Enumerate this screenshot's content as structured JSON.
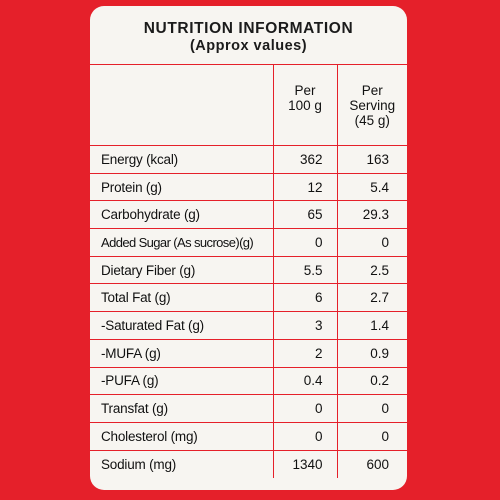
{
  "label": {
    "title": "NUTRITION INFORMATION",
    "subtitle": "(Approx values)",
    "columns": {
      "per_100g_line1": "Per",
      "per_100g_line2": "100 g",
      "per_serving_line1": "Per",
      "per_serving_line2": "Serving",
      "per_serving_line3": "(45 g)"
    },
    "rows": [
      {
        "name": "Energy (kcal)",
        "per_100g": "362",
        "per_serving": "163"
      },
      {
        "name": "Protein (g)",
        "per_100g": "12",
        "per_serving": "5.4"
      },
      {
        "name": "Carbohydrate (g)",
        "per_100g": "65",
        "per_serving": "29.3"
      },
      {
        "name": "Added Sugar (As sucrose)(g)",
        "per_100g": "0",
        "per_serving": "0"
      },
      {
        "name": "Dietary Fiber (g)",
        "per_100g": "5.5",
        "per_serving": "2.5"
      },
      {
        "name": "Total Fat (g)",
        "per_100g": "6",
        "per_serving": "2.7"
      },
      {
        "name": "-Saturated Fat (g)",
        "per_100g": "3",
        "per_serving": "1.4"
      },
      {
        "name": "-MUFA (g)",
        "per_100g": "2",
        "per_serving": "0.9"
      },
      {
        "name": "-PUFA (g)",
        "per_100g": "0.4",
        "per_serving": "0.2"
      },
      {
        "name": "Transfat (g)",
        "per_100g": "0",
        "per_serving": "0"
      },
      {
        "name": "Cholesterol (mg)",
        "per_100g": "0",
        "per_serving": "0"
      },
      {
        "name": "Sodium (mg)",
        "per_100g": "1340",
        "per_serving": "600"
      }
    ]
  },
  "colors": {
    "package_red": "#e5202a",
    "panel_background": "#f7f5f1",
    "text": "#111111"
  }
}
